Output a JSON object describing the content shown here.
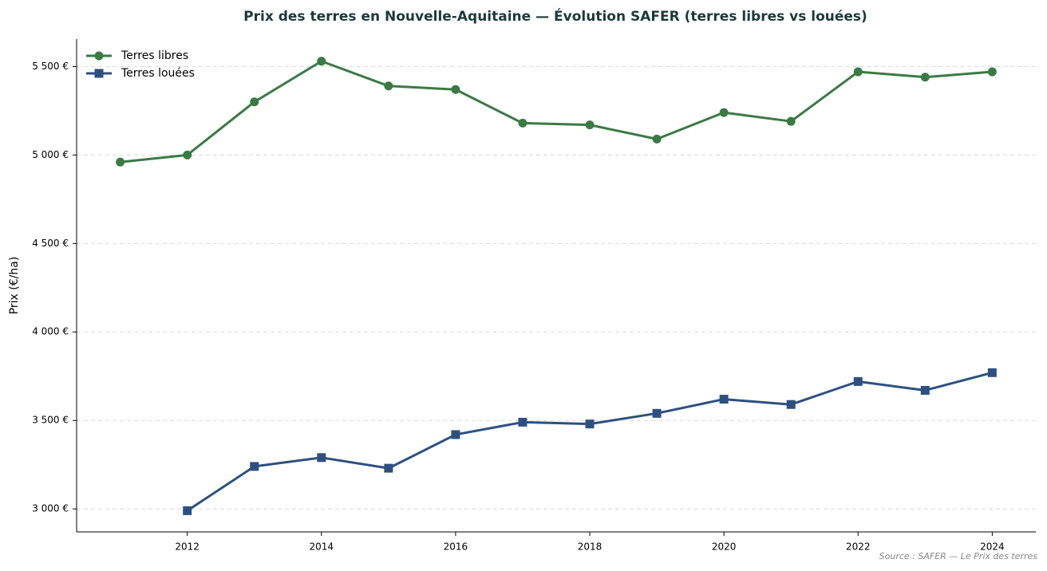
{
  "chart_data": {
    "type": "line",
    "title": "Prix des terres en Nouvelle-Aquitaine — Évolution SAFER (terres libres vs louées)",
    "y_label": "Prix (€/ha)",
    "source": "Source : SAFER — Le Prix des terres",
    "x": [
      2011,
      2012,
      2013,
      2014,
      2015,
      2016,
      2017,
      2018,
      2019,
      2020,
      2021,
      2022,
      2023,
      2024
    ],
    "series": [
      {
        "name": "Terres libres",
        "color": "#3a7a45",
        "marker": "circle",
        "values": [
          4960,
          5000,
          5300,
          5530,
          5390,
          5370,
          5180,
          5170,
          5090,
          5240,
          5190,
          5470,
          5440,
          5470
        ]
      },
      {
        "name": "Terres louées",
        "color": "#2d5080",
        "marker": "square",
        "values": [
          null,
          2990,
          3240,
          3290,
          3230,
          3420,
          3490,
          3480,
          3540,
          3620,
          3590,
          3720,
          3670,
          3770
        ]
      }
    ],
    "xlim": [
      2010.35,
      2024.65
    ],
    "xticks": [
      2012,
      2014,
      2016,
      2018,
      2020,
      2022,
      2024
    ],
    "ylim": [
      2870,
      5655
    ],
    "yticks": [
      {
        "value": 3000,
        "label": "3 000 €"
      },
      {
        "value": 3500,
        "label": "3 500 €"
      },
      {
        "value": 4000,
        "label": "4 000 €"
      },
      {
        "value": 4500,
        "label": "4 500 €"
      },
      {
        "value": 5000,
        "label": "5 000 €"
      },
      {
        "value": 5500,
        "label": "5 500 €"
      }
    ],
    "grid": true,
    "legend": "upper-left"
  }
}
